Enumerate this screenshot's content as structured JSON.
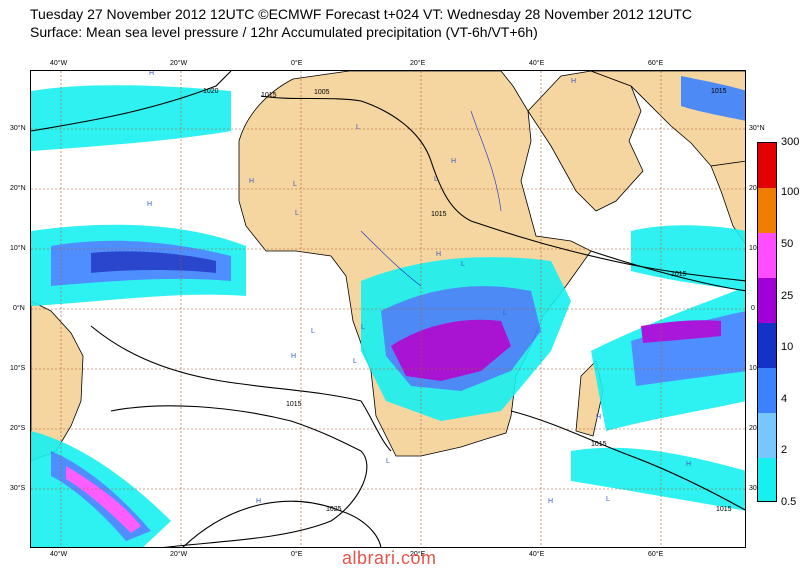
{
  "header": {
    "line1": "Tuesday 27 November 2012 12UTC ©ECMWF Forecast t+024 VT: Wednesday 28 November 2012 12UTC",
    "line2": "Surface: Mean sea level pressure / 12hr Accumulated precipitation (VT-6h/VT+6h)"
  },
  "axes": {
    "lon_top": [
      "40°W",
      "20°W",
      "0°E",
      "20°E",
      "40°E",
      "60°E"
    ],
    "lon_bottom": [
      "40°W",
      "20°W",
      "0°E",
      "20°E",
      "40°E",
      "60°E"
    ],
    "lat_left": [
      "30°N",
      "20°N",
      "10°N",
      "0°N",
      "10°S",
      "20°S",
      "30°S"
    ],
    "lat_right": [
      "30°N",
      "20",
      "10",
      "0",
      "10",
      "20",
      "30"
    ]
  },
  "legend": {
    "labels": [
      "300",
      "100",
      "50",
      "25",
      "10",
      "4",
      "2",
      "0.5"
    ],
    "colors": [
      "#e30000",
      "#f07d00",
      "#ff4dff",
      "#a000d7",
      "#1432c8",
      "#3c82ff",
      "#78c8ff",
      "#18f0f0"
    ]
  },
  "isobars": [
    "1020",
    "1015",
    "1005",
    "1015",
    "1015",
    "1015",
    "1015",
    "1025",
    "1015",
    "1015"
  ],
  "pressure_centres": [
    "H",
    "L",
    "H",
    "L",
    "L",
    "H",
    "H",
    "L",
    "H",
    "L",
    "L",
    "L",
    "L",
    "H",
    "H",
    "L",
    "H",
    "H",
    "L",
    "H",
    "L",
    "H"
  ],
  "colors": {
    "land": "#f5d6a0",
    "ocean": "#ffffff",
    "grid": "#b05a2a"
  },
  "watermark": "albrari.com"
}
